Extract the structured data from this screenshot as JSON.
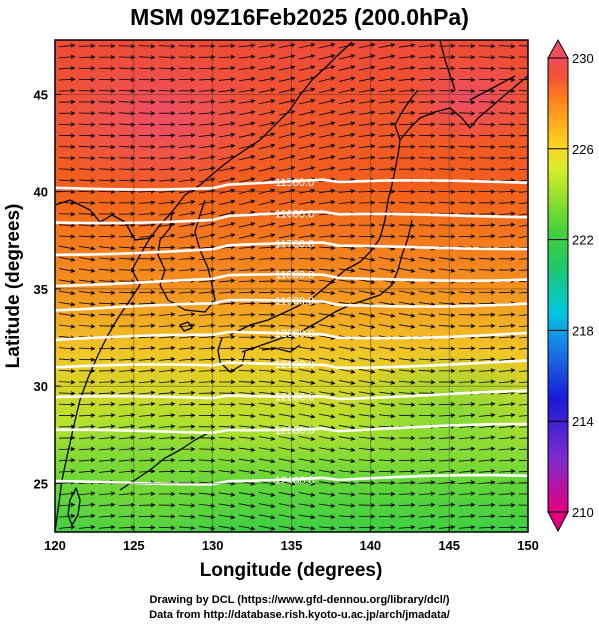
{
  "title": "MSM 09Z16Feb2025 (200.0hPa)",
  "credits": {
    "line1": "Drawing by DCL (https://www.gfd-dennou.org/library/dcl/)",
    "line2": "Data from http://database.rish.kyoto-u.ac.jp/arch/jmadata/"
  },
  "map": {
    "xlabel": "Longitude (degrees)",
    "ylabel": "Latitude  (degrees)",
    "lon_range": [
      120,
      150
    ],
    "lat_range": [
      22.5,
      47.8
    ],
    "x_ticks": [
      120,
      125,
      130,
      135,
      140,
      145,
      150
    ],
    "y_ticks": [
      25,
      30,
      35,
      40,
      45
    ],
    "gridlines": true
  },
  "colorbar": {
    "min": 210,
    "max": 230,
    "tick_labels": [
      "230",
      "226",
      "222",
      "218",
      "214",
      "210"
    ],
    "colors": [
      "#e6007e",
      "#7a2bd0",
      "#1a1ad8",
      "#1a7ae6",
      "#00c8e0",
      "#1fc76a",
      "#46d23c",
      "#9be12e",
      "#dcec2a",
      "#ffd21e",
      "#ffab1e",
      "#ff7f1e",
      "#f45036",
      "#ee4d5d"
    ]
  },
  "contours": [
    {
      "label": "11500.0",
      "lat": 40.2
    },
    {
      "label": "11600.0",
      "lat": 38.5
    },
    {
      "label": "11700.0",
      "lat": 36.9
    },
    {
      "label": "11800.0",
      "lat": 35.3
    },
    {
      "label": "11900.0",
      "lat": 34.0
    },
    {
      "label": "12000.0",
      "lat": 32.4
    },
    {
      "label": "12100.0",
      "lat": 30.9
    },
    {
      "label": "12200.0",
      "lat": 29.3
    },
    {
      "label": "12300.0",
      "lat": 27.6
    },
    {
      "label": "12400.0",
      "lat": 25.0
    }
  ]
}
